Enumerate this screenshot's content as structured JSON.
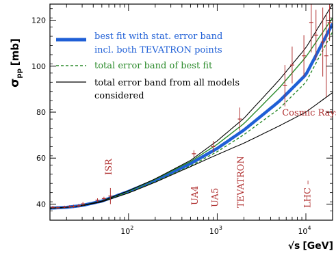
{
  "chart_data": {
    "type": "line",
    "ylabel_main": "σ",
    "ylabel_sub": "pp",
    "ylabel_unit": "[mb]",
    "xlabel_root": "√s",
    "xlabel_unit": "[GeV]",
    "xscale": "log",
    "xlim": [
      13,
      20000
    ],
    "ylim": [
      33,
      127
    ],
    "y_ticks": [
      40,
      60,
      80,
      100,
      120
    ],
    "x_ticks": [
      {
        "value": 100,
        "label": "10",
        "exp": "2"
      },
      {
        "value": 1000,
        "label": "10",
        "exp": "3"
      },
      {
        "value": 10000,
        "label": "10",
        "exp": "4"
      }
    ],
    "legend": [
      {
        "label": "best fit with stat. error band",
        "label2": "incl. both TEVATRON points",
        "color": "#1f5fd6",
        "style": "thick"
      },
      {
        "label": "total error band of best fit",
        "color": "#2a8a2a",
        "style": "dashed"
      },
      {
        "label": "total error band from all models",
        "label2": "considered",
        "color": "#000000",
        "style": "solid"
      }
    ],
    "annotations": [
      {
        "text": "ISR",
        "x": 60,
        "rotated": true
      },
      {
        "text": "UA4",
        "x": 560,
        "rotated": true
      },
      {
        "text": "UA5",
        "x": 950,
        "rotated": true
      },
      {
        "text": "TEVATRON",
        "x": 1850,
        "rotated": true
      },
      {
        "text": "LHC –",
        "x": 10500,
        "rotated": true
      },
      {
        "text": "Cosmic Rays",
        "x": 6000,
        "y": 80,
        "rotated": false
      }
    ],
    "series": [
      {
        "role": "best-fit",
        "color": "#1f5fd6",
        "x": [
          13,
          20,
          30,
          50,
          100,
          200,
          500,
          1000,
          2000,
          5000,
          10000,
          20000
        ],
        "y": [
          38.2,
          38.6,
          39.4,
          41.3,
          45.5,
          50.3,
          57.6,
          64.2,
          72.2,
          84.7,
          96.3,
          118.5
        ]
      },
      {
        "role": "green-upper",
        "color": "#2a8a2a",
        "x": [
          13,
          20,
          30,
          50,
          100,
          200,
          500,
          1000,
          2000,
          5000,
          10000,
          20000
        ],
        "y": [
          38.2,
          38.6,
          39.4,
          41.3,
          45.7,
          50.8,
          58.5,
          66,
          75,
          90.5,
          104,
          121
        ]
      },
      {
        "role": "green-lower",
        "color": "#2a8a2a",
        "x": [
          13,
          20,
          30,
          50,
          100,
          200,
          500,
          1000,
          2000,
          5000,
          10000,
          20000
        ],
        "y": [
          38.2,
          38.6,
          39.3,
          41.1,
          45.1,
          49.8,
          56.6,
          62.8,
          70.2,
          81.5,
          93,
          115
        ]
      },
      {
        "role": "black-upper",
        "color": "#000000",
        "x": [
          13,
          20,
          30,
          50,
          100,
          200,
          500,
          1000,
          2000,
          5000,
          10000,
          20000
        ],
        "y": [
          38.2,
          38.6,
          39.4,
          41.3,
          45.8,
          51,
          59,
          67.5,
          77.3,
          94,
          108,
          127
        ]
      },
      {
        "role": "black-lower",
        "color": "#000000",
        "x": [
          13,
          20,
          30,
          50,
          100,
          200,
          500,
          1000,
          2000,
          5000,
          10000,
          20000
        ],
        "y": [
          38.2,
          38.6,
          39.3,
          41,
          44.8,
          49.5,
          56.3,
          61.5,
          66.5,
          74,
          80,
          88.5
        ]
      }
    ],
    "error_points": [
      {
        "x": 14,
        "y": 38.6,
        "err": 0.6
      },
      {
        "x": 16,
        "y": 38.4,
        "err": 0.6
      },
      {
        "x": 19,
        "y": 38.7,
        "err": 0.6
      },
      {
        "x": 21.7,
        "y": 38.9,
        "err": 0.6
      },
      {
        "x": 24,
        "y": 39.0,
        "err": 0.7
      },
      {
        "x": 27.5,
        "y": 39.3,
        "err": 0.8
      },
      {
        "x": 30.6,
        "y": 40.1,
        "err": 0.8
      },
      {
        "x": 44.7,
        "y": 41.7,
        "err": 0.8
      },
      {
        "x": 52.8,
        "y": 42.4,
        "err": 0.8
      },
      {
        "x": 62.5,
        "y": 43.5,
        "err": 3.5
      },
      {
        "x": 546,
        "y": 61.9,
        "err": 1.5
      },
      {
        "x": 900,
        "y": 65.0,
        "err": 2.5
      },
      {
        "x": 1800,
        "y": 77.0,
        "err": 5.0
      },
      {
        "x": 5800,
        "y": 91.5,
        "err": 9.0
      },
      {
        "x": 7000,
        "y": 100.5,
        "err": 8.0
      },
      {
        "x": 9500,
        "y": 104.5,
        "err": 9.0
      },
      {
        "x": 11500,
        "y": 119.0,
        "err": 13.0
      },
      {
        "x": 13000,
        "y": 113.5,
        "err": 11.0
      },
      {
        "x": 15500,
        "y": 110.5,
        "err": 15.0
      },
      {
        "x": 17000,
        "y": 104.5,
        "err": 18.0
      },
      {
        "x": 18500,
        "y": 119.0,
        "err": 8.0
      }
    ]
  }
}
